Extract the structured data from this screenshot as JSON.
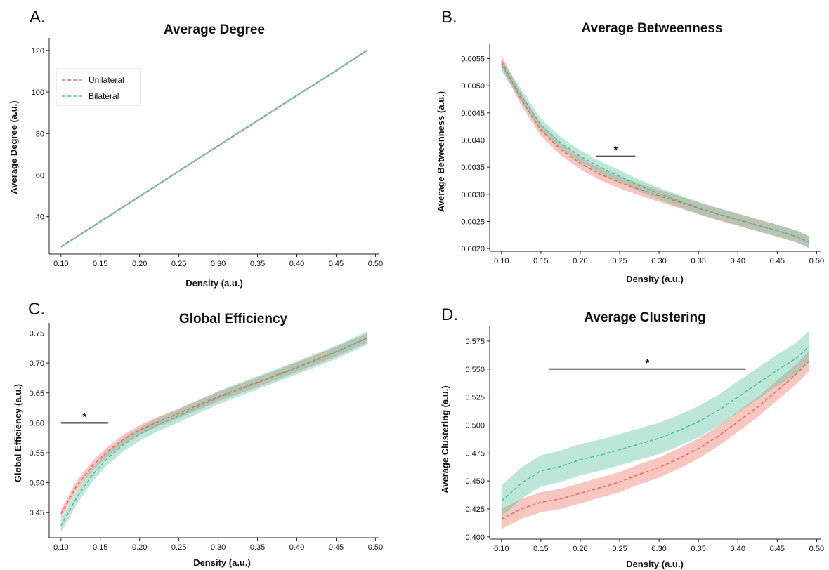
{
  "colors": {
    "unilateral": "#ec6a5c",
    "bilateral": "#4fbf98"
  },
  "legend": {
    "unilateral": "Unilateral",
    "bilateral": "Bilateral",
    "placement": "upper-left"
  },
  "chart_data": [
    {
      "type": "line",
      "panel_label": "A.",
      "title": "Average Degree",
      "xlabel": "Density (a.u.)",
      "ylabel": "Average Degree (a.u.)",
      "xlim": [
        0.085,
        0.505
      ],
      "ylim": [
        22,
        124
      ],
      "xticks": [
        0.1,
        0.15,
        0.2,
        0.25,
        0.3,
        0.35,
        0.4,
        0.45,
        0.5
      ],
      "xtick_labels": [
        "0.10",
        "0.15",
        "0.20",
        "0.25",
        "0.30",
        "0.35",
        "0.40",
        "0.45",
        "0.50"
      ],
      "yticks": [
        40,
        60,
        80,
        100,
        120
      ],
      "ytick_labels": [
        "40",
        "60",
        "80",
        "100",
        "120"
      ],
      "x": [
        0.1,
        0.15,
        0.2,
        0.25,
        0.3,
        0.35,
        0.4,
        0.45,
        0.49
      ],
      "series": [
        {
          "name": "Unilateral",
          "values": [
            25.5,
            37.6,
            49.8,
            61.9,
            74.1,
            86.2,
            98.3,
            110.3,
            120.2
          ],
          "band": 0.5
        },
        {
          "name": "Bilateral",
          "values": [
            25.5,
            37.6,
            49.8,
            61.9,
            74.1,
            86.2,
            98.3,
            110.3,
            120.2
          ],
          "band": 0.5
        }
      ],
      "significance": [],
      "show_legend": true
    },
    {
      "type": "line",
      "panel_label": "B.",
      "title": "Average Betweenness",
      "xlabel": "Density (a.u.)",
      "ylabel": "Average Betweenness (a.u.)",
      "xlim": [
        0.085,
        0.505
      ],
      "ylim": [
        0.00195,
        0.0057
      ],
      "xticks": [
        0.1,
        0.15,
        0.2,
        0.25,
        0.3,
        0.35,
        0.4,
        0.45,
        0.5
      ],
      "xtick_labels": [
        "0.10",
        "0.15",
        "0.20",
        "0.25",
        "0.30",
        "0.35",
        "0.40",
        "0.45",
        "0.50"
      ],
      "yticks": [
        0.002,
        0.0025,
        0.003,
        0.0035,
        0.004,
        0.0045,
        0.005,
        0.0055
      ],
      "ytick_labels": [
        "0.0020",
        "0.0025",
        "0.0030",
        "0.0035",
        "0.0040",
        "0.0045",
        "0.0050",
        "0.0055"
      ],
      "x": [
        0.1,
        0.125,
        0.15,
        0.175,
        0.2,
        0.225,
        0.25,
        0.275,
        0.3,
        0.325,
        0.35,
        0.375,
        0.4,
        0.425,
        0.45,
        0.475,
        0.49
      ],
      "series": [
        {
          "name": "Unilateral",
          "values": [
            0.00545,
            0.00475,
            0.00418,
            0.00383,
            0.00357,
            0.00337,
            0.00322,
            0.00309,
            0.00297,
            0.00286,
            0.00274,
            0.00263,
            0.00253,
            0.00243,
            0.00233,
            0.00222,
            0.00212
          ],
          "band": 0.00011
        },
        {
          "name": "Bilateral",
          "values": [
            0.00538,
            0.00482,
            0.00428,
            0.00395,
            0.0037,
            0.0035,
            0.00333,
            0.00316,
            0.00301,
            0.00288,
            0.00275,
            0.00264,
            0.00254,
            0.00243,
            0.00233,
            0.00222,
            0.00212
          ],
          "band": 0.00011
        }
      ],
      "significance": [
        {
          "x_start": 0.22,
          "x_end": 0.27,
          "y": 0.0037,
          "label": "*"
        }
      ],
      "show_legend": false
    },
    {
      "type": "line",
      "panel_label": "C.",
      "title": "Global Efficiency",
      "xlabel": "Density (a.u.)",
      "ylabel": "Global Efficiency (a.u.)",
      "xlim": [
        0.085,
        0.505
      ],
      "ylim": [
        0.408,
        0.76
      ],
      "xticks": [
        0.1,
        0.15,
        0.2,
        0.25,
        0.3,
        0.35,
        0.4,
        0.45,
        0.5
      ],
      "xtick_labels": [
        "0.10",
        "0.15",
        "0.20",
        "0.25",
        "0.30",
        "0.35",
        "0.40",
        "0.45",
        "0.50"
      ],
      "yticks": [
        0.45,
        0.5,
        0.55,
        0.6,
        0.65,
        0.7,
        0.75
      ],
      "ytick_labels": [
        "0.45",
        "0.50",
        "0.55",
        "0.60",
        "0.65",
        "0.70",
        "0.75"
      ],
      "x": [
        0.1,
        0.12,
        0.14,
        0.16,
        0.18,
        0.2,
        0.22,
        0.25,
        0.3,
        0.35,
        0.4,
        0.45,
        0.49
      ],
      "series": [
        {
          "name": "Unilateral",
          "values": [
            0.448,
            0.495,
            0.528,
            0.553,
            0.573,
            0.588,
            0.6,
            0.616,
            0.644,
            0.668,
            0.693,
            0.719,
            0.742
          ],
          "band": 0.008
        },
        {
          "name": "Bilateral",
          "values": [
            0.428,
            0.475,
            0.513,
            0.542,
            0.564,
            0.581,
            0.595,
            0.612,
            0.642,
            0.667,
            0.692,
            0.718,
            0.742
          ],
          "band": 0.011
        }
      ],
      "significance": [
        {
          "x_start": 0.1,
          "x_end": 0.16,
          "y": 0.6,
          "label": "*"
        }
      ],
      "show_legend": false
    },
    {
      "type": "line",
      "panel_label": "D.",
      "title": "Average Clustering",
      "xlabel": "Density (a.u.)",
      "ylabel": "Average Clustering (a.u.)",
      "xlim": [
        0.085,
        0.505
      ],
      "ylim": [
        0.398,
        0.585
      ],
      "xticks": [
        0.1,
        0.15,
        0.2,
        0.25,
        0.3,
        0.35,
        0.4,
        0.45,
        0.5
      ],
      "xtick_labels": [
        "0.10",
        "0.15",
        "0.20",
        "0.25",
        "0.30",
        "0.35",
        "0.40",
        "0.45",
        "0.50"
      ],
      "yticks": [
        0.4,
        0.425,
        0.45,
        0.475,
        0.5,
        0.525,
        0.55,
        0.575
      ],
      "ytick_labels": [
        "0.400",
        "0.425",
        "0.450",
        "0.475",
        "0.500",
        "0.525",
        "0.550",
        "0.575"
      ],
      "x": [
        0.1,
        0.125,
        0.15,
        0.175,
        0.2,
        0.225,
        0.25,
        0.275,
        0.3,
        0.325,
        0.35,
        0.375,
        0.4,
        0.425,
        0.45,
        0.475,
        0.49
      ],
      "series": [
        {
          "name": "Unilateral",
          "values": [
            0.416,
            0.425,
            0.431,
            0.434,
            0.439,
            0.444,
            0.449,
            0.456,
            0.462,
            0.47,
            0.479,
            0.49,
            0.503,
            0.516,
            0.531,
            0.546,
            0.557
          ],
          "band": 0.009
        },
        {
          "name": "Bilateral",
          "values": [
            0.432,
            0.448,
            0.459,
            0.463,
            0.469,
            0.473,
            0.478,
            0.483,
            0.488,
            0.495,
            0.503,
            0.513,
            0.525,
            0.537,
            0.549,
            0.56,
            0.57
          ],
          "band": 0.014
        }
      ],
      "significance": [
        {
          "x_start": 0.16,
          "x_end": 0.41,
          "y": 0.55,
          "label": "*"
        }
      ],
      "show_legend": false
    }
  ]
}
